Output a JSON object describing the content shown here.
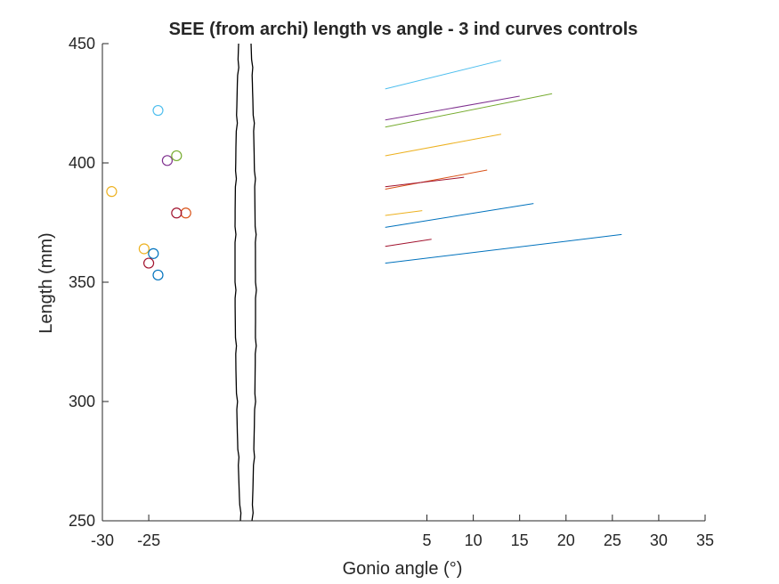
{
  "chart_data": {
    "type": "line",
    "title": "SEE (from archi) length vs angle - 3 ind curves controls",
    "xlabel": "Gonio angle (°)",
    "ylabel": "Length (mm)",
    "xlim": [
      -30,
      35
    ],
    "ylim": [
      250,
      450
    ],
    "x_broken_axis": true,
    "x_ticks": [
      {
        "value": -30,
        "label": "-30"
      },
      {
        "value": -25,
        "label": "-25"
      },
      {
        "value": 5,
        "label": "5"
      },
      {
        "value": 10,
        "label": "10"
      },
      {
        "value": 15,
        "label": "15"
      },
      {
        "value": 20,
        "label": "20"
      },
      {
        "value": 25,
        "label": "25"
      },
      {
        "value": 30,
        "label": "30"
      },
      {
        "value": 35,
        "label": "35"
      }
    ],
    "y_ticks": [
      {
        "value": 250,
        "label": "250"
      },
      {
        "value": 300,
        "label": "300"
      },
      {
        "value": 350,
        "label": "350"
      },
      {
        "value": 400,
        "label": "400"
      },
      {
        "value": 450,
        "label": "450"
      }
    ],
    "grid": false,
    "legend": "none",
    "series": [
      {
        "color": "#4DBEEE",
        "line": {
          "x": [
            0.5,
            13.0
          ],
          "y": [
            431,
            443
          ]
        },
        "marker": {
          "x": -24,
          "y": 422
        }
      },
      {
        "color": "#7E2F8E",
        "line": {
          "x": [
            0.5,
            15.0
          ],
          "y": [
            418,
            428
          ]
        },
        "marker": {
          "x": -23,
          "y": 401
        }
      },
      {
        "color": "#77AC30",
        "line": {
          "x": [
            0.5,
            18.5
          ],
          "y": [
            415,
            429
          ]
        },
        "marker": {
          "x": -22,
          "y": 403
        }
      },
      {
        "color": "#EDB120",
        "line": {
          "x": [
            0.5,
            13.0
          ],
          "y": [
            403,
            412
          ]
        },
        "marker": {
          "x": -29,
          "y": 388
        }
      },
      {
        "color": "#D95319",
        "line": {
          "x": [
            0.5,
            11.5
          ],
          "y": [
            389,
            397
          ]
        },
        "marker": {
          "x": -21,
          "y": 379
        }
      },
      {
        "color": "#A2142F",
        "line": {
          "x": [
            0.5,
            9.0
          ],
          "y": [
            390,
            394
          ]
        },
        "marker": {
          "x": -22,
          "y": 379
        }
      },
      {
        "color": "#EDB120",
        "line": {
          "x": [
            0.5,
            4.5
          ],
          "y": [
            378,
            380
          ]
        },
        "marker": {
          "x": -25.5,
          "y": 364
        }
      },
      {
        "color": "#0072BD",
        "line": {
          "x": [
            0.5,
            16.5
          ],
          "y": [
            373,
            383
          ]
        },
        "marker": {
          "x": -24.5,
          "y": 362
        }
      },
      {
        "color": "#A2142F",
        "line": {
          "x": [
            0.5,
            5.5
          ],
          "y": [
            365,
            368
          ]
        },
        "marker": {
          "x": -25,
          "y": 358
        }
      },
      {
        "color": "#0072BD",
        "line": {
          "x": [
            0.5,
            26.0
          ],
          "y": [
            358,
            370
          ]
        },
        "marker": {
          "x": -24,
          "y": 353
        }
      }
    ]
  }
}
